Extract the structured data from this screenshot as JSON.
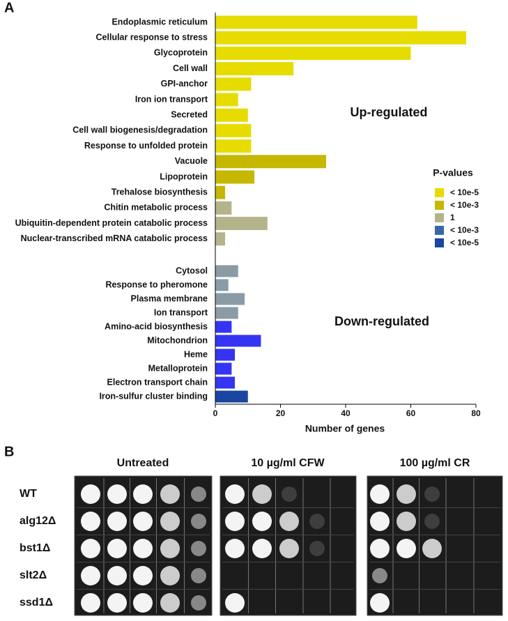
{
  "panel_a_label": "A",
  "chart_data": {
    "type": "barh",
    "categories": [
      "Endoplasmic reticulum",
      "Cellular response to stress",
      "Glycoprotein",
      "Cell wall",
      "GPI-anchor",
      "Iron ion transport",
      "Secreted",
      "Cell wall biogenesis/degradation",
      "Response to unfolded protein",
      "Vacuole",
      "Lipoprotein",
      "Trehalose biosynthesis",
      "Chitin metabolic process",
      "Ubiquitin-dependent protein catabolic process",
      "Nuclear-transcribed mRNA catabolic process",
      "Cytosol",
      "Response to pheromone",
      "Plasma membrane",
      "Ion transport",
      "Amino-acid biosynthesis",
      "Mitochondrion",
      "Heme",
      "Metalloprotein",
      "Electron transport chain",
      "Iron-sulfur cluster binding"
    ],
    "values": [
      62,
      77,
      60,
      24,
      11,
      7,
      10,
      11,
      11,
      34,
      12,
      3,
      5,
      16,
      3,
      7,
      4,
      9,
      7,
      5,
      14,
      6,
      5,
      6,
      10
    ],
    "colors": [
      "#e6dc00",
      "#e6dc00",
      "#e6dc00",
      "#e6dc00",
      "#e6dc00",
      "#e6dc00",
      "#e6dc00",
      "#e6dc00",
      "#e6dc00",
      "#c6b800",
      "#c6b800",
      "#c6b800",
      "#b5b38a",
      "#b5b38a",
      "#b5b38a",
      "#8a9ba6",
      "#8a9ba6",
      "#8a9ba6",
      "#8a9ba6",
      "#3434f2",
      "#3434f2",
      "#3434f2",
      "#3434f2",
      "#3434f2",
      "#1a46a2"
    ],
    "x_label": "Number of genes",
    "xlim": [
      0,
      80
    ],
    "xticks": [
      0,
      20,
      40,
      60,
      80
    ],
    "annotations": [
      "Up-regulated",
      "Down-regulated"
    ],
    "legend": {
      "title": "P-values",
      "items": [
        {
          "label": "< 10e-5",
          "color": "#e6dc00"
        },
        {
          "label": "< 10e-3",
          "color": "#c6b800"
        },
        {
          "label": "1",
          "color": "#b5b38a"
        },
        {
          "label": "< 10e-3",
          "color": "#3a67a8"
        },
        {
          "label": "< 10e-5",
          "color": "#1a46a2"
        }
      ]
    }
  },
  "panel_b": {
    "label": "B",
    "conditions": [
      "Untreated",
      "10 µg/ml CFW",
      "100 µg/ml CR"
    ],
    "strains": [
      "WT",
      "alg12Δ",
      "bst1Δ",
      "slt2Δ",
      "ssd1Δ"
    ]
  }
}
